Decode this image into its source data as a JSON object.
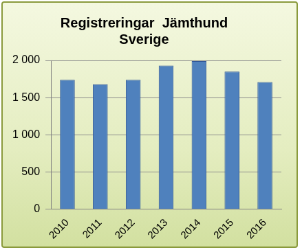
{
  "chart_data": {
    "type": "bar",
    "title": [
      "Registreringar  Jämthund",
      "Sverige"
    ],
    "categories": [
      "2010",
      "2011",
      "2012",
      "2013",
      "2014",
      "2015",
      "2016"
    ],
    "values": [
      1740,
      1680,
      1740,
      1930,
      1990,
      1850,
      1710
    ],
    "color": "#4f81bd",
    "ylim": [
      0,
      2000
    ],
    "yticks": [
      0,
      500,
      {
        "value": 1000,
        "label": "1 000"
      },
      {
        "value": 1500,
        "label": "1 500"
      },
      {
        "value": 2000,
        "label": "2 000"
      }
    ],
    "grid": true
  }
}
